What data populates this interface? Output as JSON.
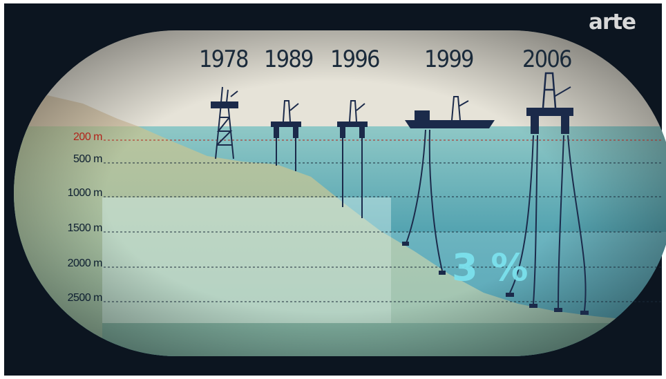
{
  "brand": {
    "logo_text": "arte"
  },
  "years": [
    "1978",
    "1989",
    "1996",
    "1999",
    "2006"
  ],
  "depth_levels": [
    "200 m",
    "500 m",
    "1000 m",
    "1500 m",
    "2000 m",
    "2500 m"
  ],
  "highlight": {
    "share": "3 %"
  },
  "colors": {
    "sky": "#e6e3d8",
    "sea": "#3f9aa8",
    "seabed": "#c4cba8",
    "structures": "#1b2a4a",
    "highlight_text": "#7ce2ee",
    "highlight_depth": "#b2221a",
    "frame": "#0c1520"
  },
  "icons": [
    "oil-derrick-icon",
    "platform-icon",
    "platform-icon",
    "drillship-icon",
    "semi-submersible-rig-icon"
  ]
}
